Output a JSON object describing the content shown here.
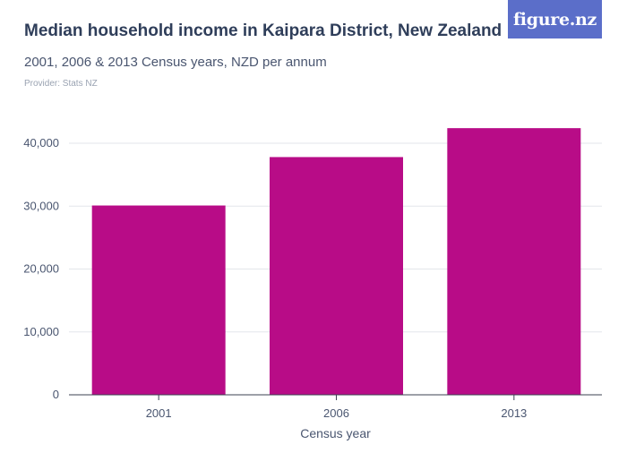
{
  "header": {
    "title": "Median household income in Kaipara District, New Zealand",
    "subtitle": "2001, 2006 & 2013 Census years, NZD per annum",
    "provider": "Provider: Stats NZ"
  },
  "logo": {
    "text": "figure.nz"
  },
  "colors": {
    "bar": "#b80c87",
    "grid": "#e3e6eb",
    "axis": "#3b4252",
    "logo_bg": "#5b6ec9"
  },
  "chart_data": {
    "type": "bar",
    "categories": [
      "2001",
      "2006",
      "2013"
    ],
    "values": [
      30100,
      37800,
      42400
    ],
    "xlabel": "Census year",
    "ylabel": "",
    "ylim": [
      0,
      40000
    ],
    "yticks": [
      0,
      10000,
      20000,
      30000,
      40000
    ],
    "ytick_labels": [
      "0",
      "10,000",
      "20,000",
      "30,000",
      "40,000"
    ],
    "grid": true,
    "legend": "none"
  }
}
